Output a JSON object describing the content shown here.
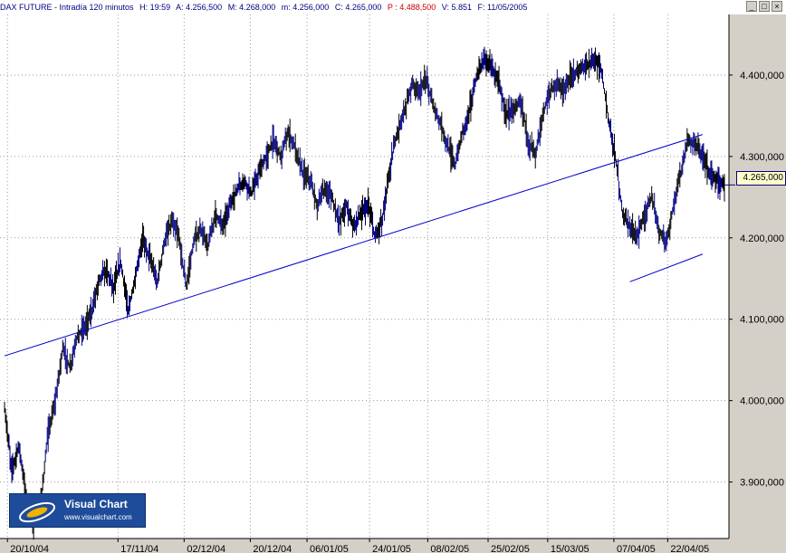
{
  "header": {
    "symbol": "DAX FUTURE - Intradía 120 minutos",
    "high": "H: 19:59",
    "ask": "A: 4.256,500",
    "max": "M: 4.268,000",
    "min": "m: 4.256,000",
    "close": "C: 4.265,000",
    "p": "P : 4.488,500",
    "volume": "V: 5.851",
    "date": "F: 11/05/2005"
  },
  "window_buttons": {
    "minimize": "_",
    "maximize": "□",
    "close": "×"
  },
  "logo": {
    "title": "Visual Chart",
    "url": "www.visualchart.com"
  },
  "last_price": "4.265,000",
  "colors": {
    "background": "#ffffff",
    "axis_panel": "#d4d0c8",
    "grid": "#9a9a9a",
    "trendline": "#0000cc",
    "bars_primary": "#000000",
    "bars_secondary": "#000080"
  },
  "chart_data": {
    "type": "line",
    "title": "DAX FUTURE - Intradía 120 minutos",
    "xlabel": "",
    "ylabel": "",
    "grid": true,
    "ylim": [
      3835,
      4470
    ],
    "yticks": [
      "4.400,000",
      "4.300,000",
      "4.200,000",
      "4.100,000",
      "4.000,000",
      "3.900,000"
    ],
    "ytick_values": [
      4400,
      4300,
      4200,
      4100,
      4000,
      3900
    ],
    "xticks": [
      "20/10/04",
      "17/11/04",
      "02/12/04",
      "20/12/04",
      "06/01/05",
      "24/01/05",
      "08/02/05",
      "25/02/05",
      "15/03/05",
      "07/04/05",
      "22/04/05"
    ],
    "xtick_positions": [
      0.4,
      15.6,
      24.7,
      33.8,
      41.6,
      50.2,
      58.2,
      66.5,
      74.7,
      83.8,
      91.2
    ],
    "x": [
      0,
      1,
      2,
      3,
      4,
      5,
      6,
      7,
      8,
      9,
      10,
      11,
      12,
      13,
      14,
      15,
      16,
      17,
      18,
      19,
      20,
      21,
      22,
      23,
      24,
      25,
      26,
      27,
      28,
      29,
      30,
      31,
      32,
      33,
      34,
      35,
      36,
      37,
      38,
      39,
      40,
      41,
      42,
      43,
      44,
      45,
      46,
      47,
      48,
      49,
      50,
      51,
      52,
      53,
      54,
      55,
      56,
      57,
      58,
      59,
      60,
      61,
      62,
      63,
      64,
      65,
      66,
      67,
      68,
      69,
      70,
      71,
      72,
      73,
      74,
      75,
      76,
      77,
      78,
      79,
      80,
      81,
      82,
      83,
      84,
      85,
      86,
      87,
      88,
      89,
      90,
      91,
      92,
      93,
      94,
      95,
      96,
      97,
      98,
      99
    ],
    "series": [
      {
        "values": [
          3990,
          3915,
          3945,
          3880,
          3850,
          3875,
          3960,
          4000,
          4065,
          4040,
          4080,
          4090,
          4110,
          4150,
          4160,
          4140,
          4170,
          4110,
          4150,
          4200,
          4175,
          4145,
          4195,
          4220,
          4200,
          4140,
          4195,
          4210,
          4190,
          4230,
          4215,
          4240,
          4260,
          4270,
          4255,
          4280,
          4300,
          4320,
          4300,
          4330,
          4310,
          4280,
          4270,
          4240,
          4260,
          4250,
          4220,
          4240,
          4215,
          4230,
          4240,
          4200,
          4225,
          4285,
          4330,
          4355,
          4390,
          4380,
          4395,
          4360,
          4340,
          4310,
          4290,
          4330,
          4360,
          4400,
          4420,
          4410,
          4390,
          4350,
          4360,
          4370,
          4320,
          4300,
          4350,
          4380,
          4390,
          4380,
          4400,
          4405,
          4410,
          4420,
          4410,
          4350,
          4300,
          4230,
          4215,
          4200,
          4230,
          4250,
          4210,
          4195,
          4240,
          4280,
          4320,
          4315,
          4300,
          4280,
          4270,
          4265
        ]
      }
    ],
    "trendlines": [
      {
        "x": [
          0,
          96
        ],
        "y": [
          4055,
          4327
        ]
      },
      {
        "x": [
          86,
          96
        ],
        "y": [
          4146,
          4180
        ]
      }
    ],
    "last_value": 4265
  }
}
